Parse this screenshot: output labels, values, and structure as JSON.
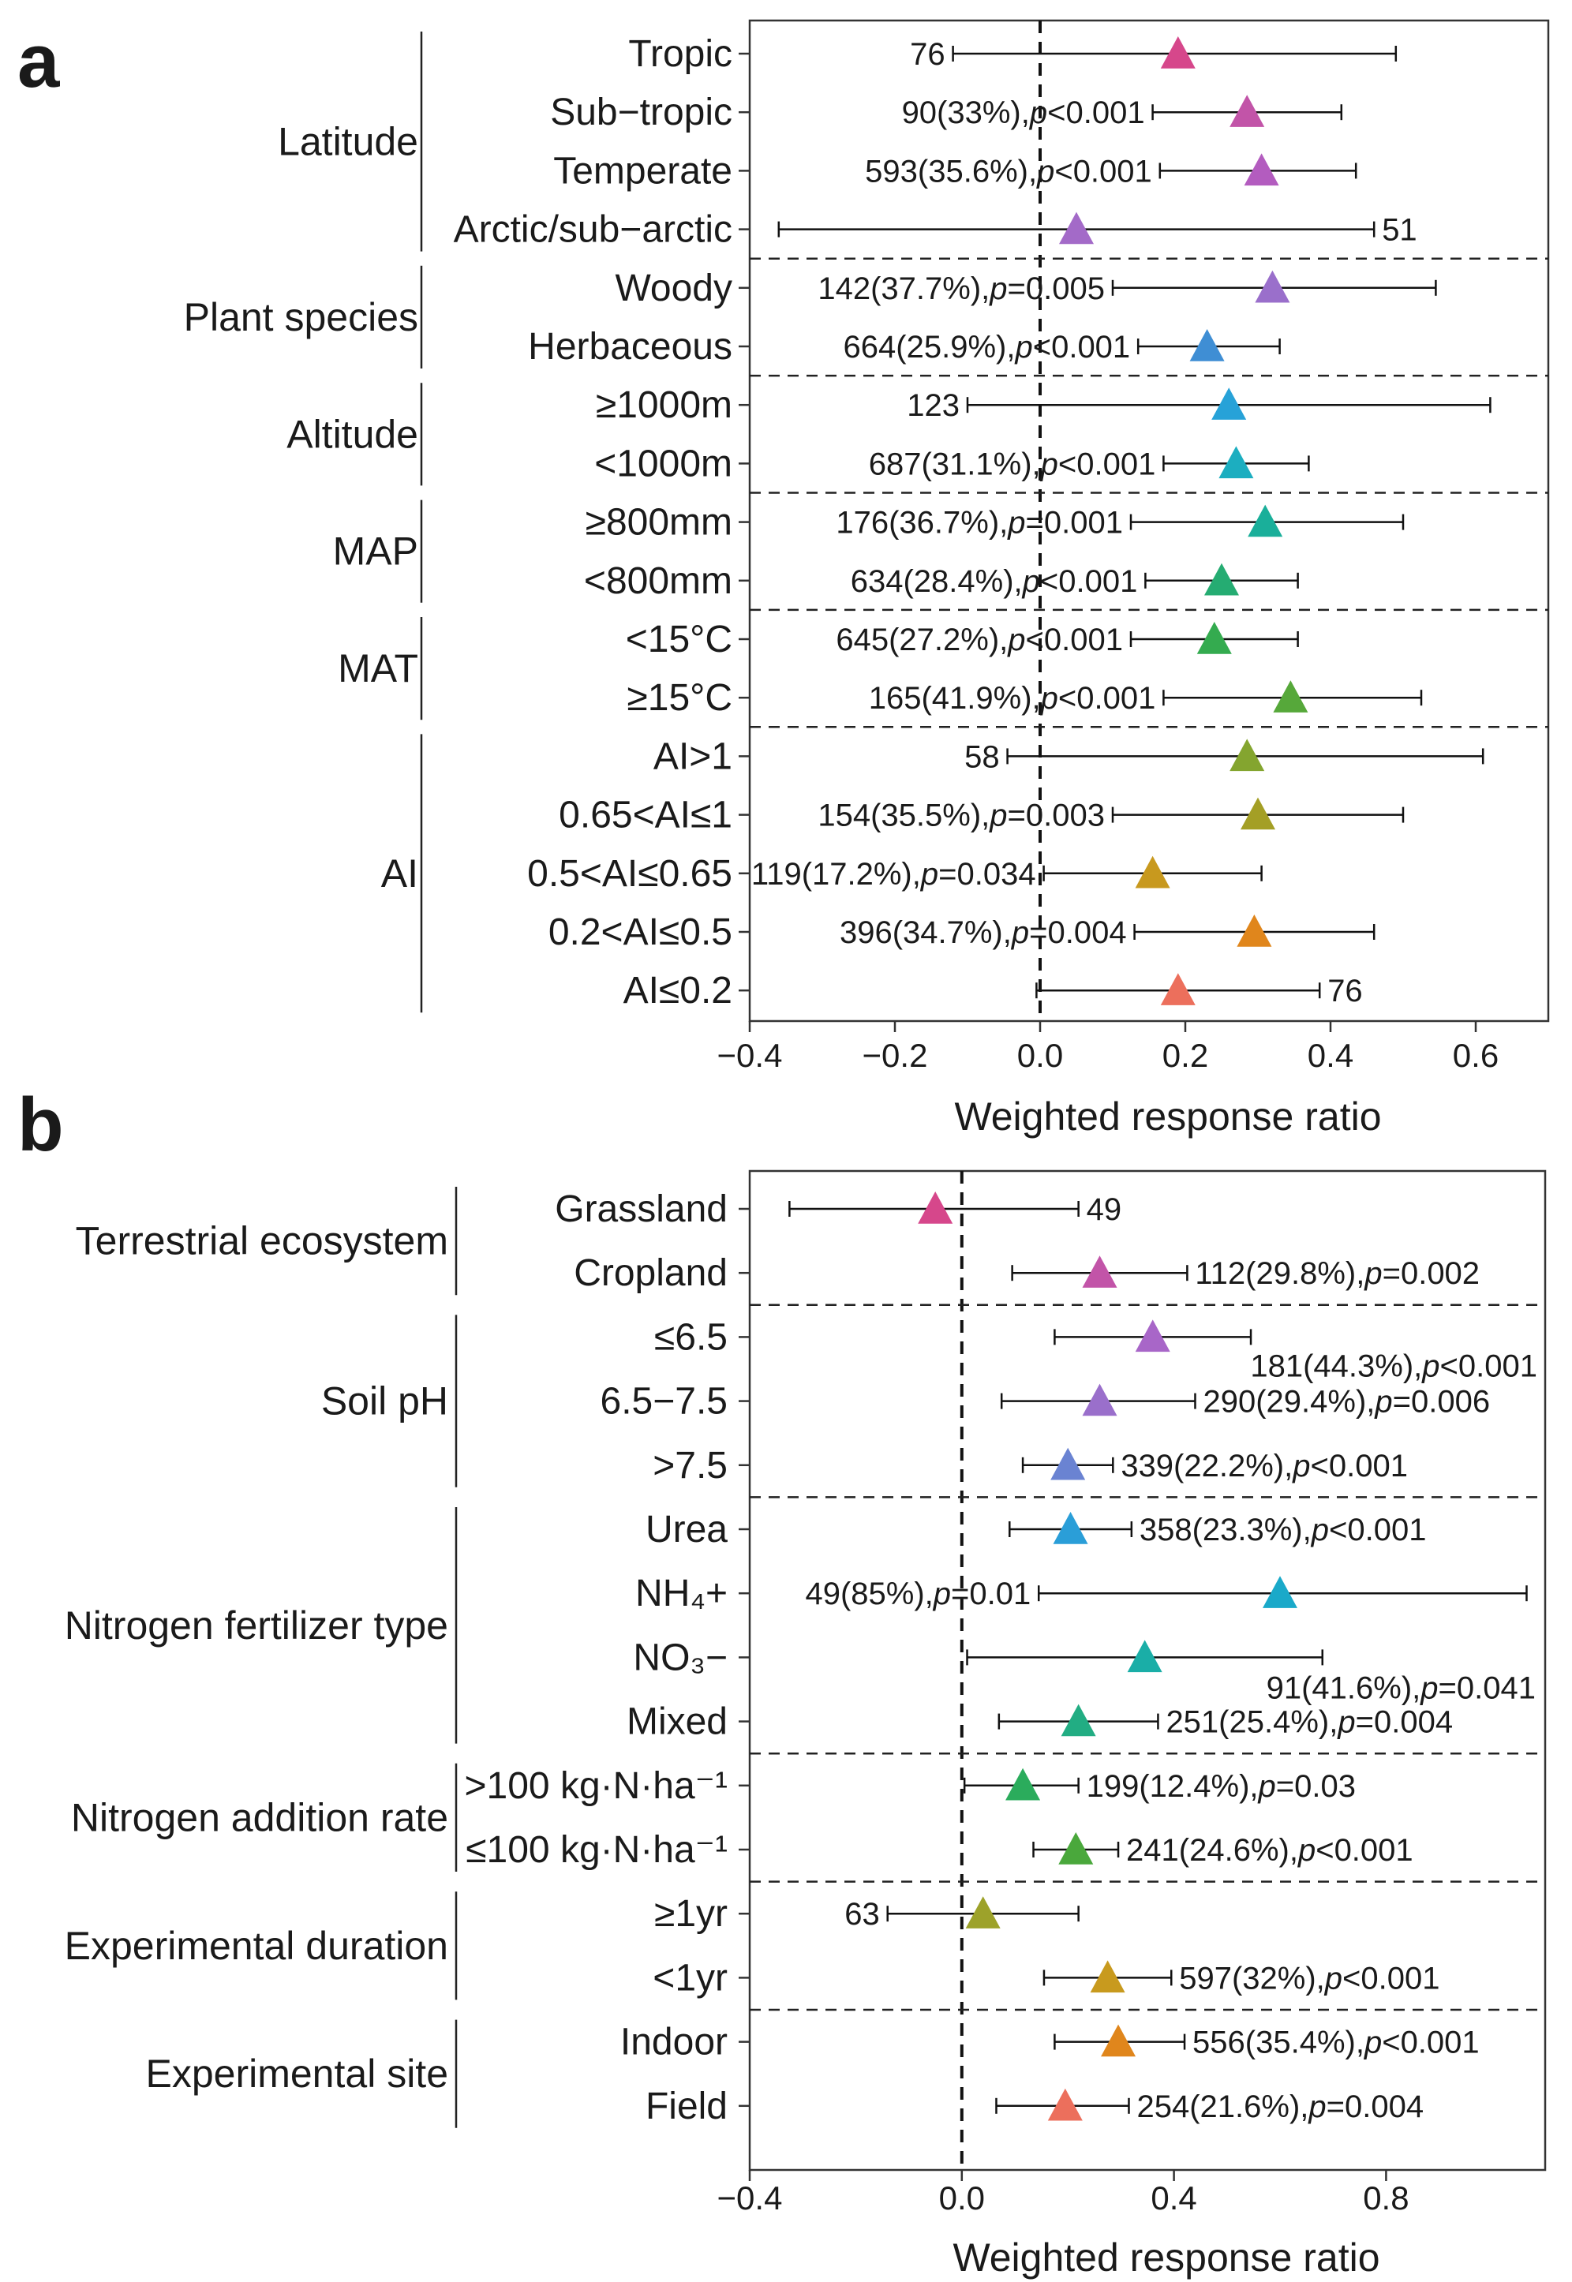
{
  "chart_data": [
    {
      "type": "forest",
      "panel": "a",
      "xlabel": "Weighted response ratio",
      "xlim": [
        -0.4,
        0.7
      ],
      "xticks": [
        -0.4,
        -0.2,
        0.0,
        0.2,
        0.4,
        0.6
      ],
      "xtick_labels": [
        "−0.4",
        "−0.2",
        "0.0",
        "0.2",
        "0.4",
        "0.6"
      ],
      "reference_line": 0,
      "groups": [
        {
          "name": "Latitude",
          "rows": [
            {
              "label": "Tropic",
              "mean": 0.19,
              "lo": -0.12,
              "hi": 0.49,
              "annotation": "76",
              "ann_side": "left",
              "color": "#d6478b"
            },
            {
              "label": "Sub−tropic",
              "mean": 0.285,
              "lo": 0.155,
              "hi": 0.415,
              "annotation": "90(33%),p<0.001",
              "ann_side": "left",
              "color": "#c254a8"
            },
            {
              "label": "Temperate",
              "mean": 0.305,
              "lo": 0.165,
              "hi": 0.435,
              "annotation": "593(35.6%),p<0.001",
              "ann_side": "left",
              "color": "#b35cbf"
            },
            {
              "label": "Arctic/sub−arctic",
              "mean": 0.05,
              "lo": -0.36,
              "hi": 0.46,
              "annotation": "51",
              "ann_side": "right",
              "color": "#a36ac8"
            }
          ]
        },
        {
          "name": "Plant species",
          "rows": [
            {
              "label": "Woody",
              "mean": 0.32,
              "lo": 0.1,
              "hi": 0.545,
              "annotation": "142(37.7%),p=0.005",
              "ann_side": "left",
              "color": "#9a6fcb"
            },
            {
              "label": "Herbaceous",
              "mean": 0.23,
              "lo": 0.135,
              "hi": 0.33,
              "annotation": "664(25.9%),p<0.001",
              "ann_side": "left",
              "color": "#3f8ed4"
            }
          ]
        },
        {
          "name": "Altitude",
          "rows": [
            {
              "label": "≥1000m",
              "mean": 0.26,
              "lo": -0.1,
              "hi": 0.62,
              "annotation": "123",
              "ann_side": "left",
              "color": "#27a2d8"
            },
            {
              "label": "<1000m",
              "mean": 0.27,
              "lo": 0.17,
              "hi": 0.37,
              "annotation": "687(31.1%),p<0.001",
              "ann_side": "left",
              "color": "#1caec0"
            }
          ]
        },
        {
          "name": "MAP",
          "rows": [
            {
              "label": "≥800mm",
              "mean": 0.31,
              "lo": 0.125,
              "hi": 0.5,
              "annotation": "176(36.7%),p=0.001",
              "ann_side": "left",
              "color": "#1aaf9a"
            },
            {
              "label": "<800mm",
              "mean": 0.25,
              "lo": 0.145,
              "hi": 0.355,
              "annotation": "634(28.4%),p<0.001",
              "ann_side": "left",
              "color": "#25ac72"
            }
          ]
        },
        {
          "name": "MAT",
          "rows": [
            {
              "label": "<15°C",
              "mean": 0.24,
              "lo": 0.125,
              "hi": 0.355,
              "annotation": "645(27.2%),p<0.001",
              "ann_side": "left",
              "color": "#34ab4f"
            },
            {
              "label": "≥15°C",
              "mean": 0.345,
              "lo": 0.17,
              "hi": 0.525,
              "annotation": "165(41.9%),p<0.001",
              "ann_side": "left",
              "color": "#56a83a"
            }
          ]
        },
        {
          "name": "AI",
          "rows": [
            {
              "label": "AI>1",
              "mean": 0.285,
              "lo": -0.045,
              "hi": 0.61,
              "annotation": "58",
              "ann_side": "left",
              "color": "#84a52f"
            },
            {
              "label": "0.65<AI≤1",
              "mean": 0.3,
              "lo": 0.1,
              "hi": 0.5,
              "annotation": "154(35.5%),p=0.003",
              "ann_side": "left",
              "color": "#a49f25"
            },
            {
              "label": "0.5<AI≤0.65",
              "mean": 0.155,
              "lo": 0.005,
              "hi": 0.305,
              "annotation": "119(17.2%),p=0.034",
              "ann_side": "left",
              "color": "#c8991e"
            },
            {
              "label": "0.2<AI≤0.5",
              "mean": 0.295,
              "lo": 0.13,
              "hi": 0.46,
              "annotation": "396(34.7%),p=0.004",
              "ann_side": "left",
              "color": "#e0861c"
            },
            {
              "label": "AI≤0.2",
              "mean": 0.19,
              "lo": -0.005,
              "hi": 0.385,
              "annotation": "76",
              "ann_side": "right",
              "color": "#ec6f5c"
            }
          ]
        }
      ]
    },
    {
      "type": "forest",
      "panel": "b",
      "xlabel": "Weighted response ratio",
      "xlim": [
        -0.4,
        1.1
      ],
      "xticks": [
        -0.4,
        0.0,
        0.4,
        0.8
      ],
      "xtick_labels": [
        "−0.4",
        "0.0",
        "0.4",
        "0.8"
      ],
      "reference_line": 0,
      "groups": [
        {
          "name": "Terrestrial ecosystem",
          "rows": [
            {
              "label": "Grassland",
              "mean": -0.05,
              "lo": -0.325,
              "hi": 0.22,
              "annotation": "49",
              "ann_side": "right",
              "color": "#d6478b"
            },
            {
              "label": "Cropland",
              "mean": 0.26,
              "lo": 0.095,
              "hi": 0.425,
              "annotation": "112(29.8%),p=0.002",
              "ann_side": "right",
              "color": "#c254a8"
            }
          ]
        },
        {
          "name": "Soil pH",
          "rows": [
            {
              "label": "≤6.5",
              "mean": 0.36,
              "lo": 0.175,
              "hi": 0.545,
              "annotation": "181(44.3%),p<0.001",
              "ann_side": "below",
              "color": "#a866c8"
            },
            {
              "label": "6.5−7.5",
              "mean": 0.26,
              "lo": 0.075,
              "hi": 0.44,
              "annotation": "290(29.4%),p=0.006",
              "ann_side": "right",
              "color": "#9a6fcb"
            },
            {
              "label": ">7.5",
              "mean": 0.2,
              "lo": 0.115,
              "hi": 0.285,
              "annotation": "339(22.2%),p<0.001",
              "ann_side": "right",
              "color": "#6a83d2"
            }
          ]
        },
        {
          "name": "Nitrogen fertilizer type",
          "rows": [
            {
              "label": "Urea",
              "mean": 0.205,
              "lo": 0.09,
              "hi": 0.32,
              "annotation": "358(23.3%),p<0.001",
              "ann_side": "right",
              "color": "#2a9ed8"
            },
            {
              "label": "NH₄+",
              "mean": 0.6,
              "lo": 0.145,
              "hi": 1.065,
              "annotation": "49(85%),p=0.01",
              "ann_side": "left",
              "color": "#1aa9c9"
            },
            {
              "label": "NO₃−",
              "mean": 0.345,
              "lo": 0.01,
              "hi": 0.68,
              "annotation": "91(41.6%),p=0.041",
              "ann_side": "above-right",
              "color": "#1aaea7"
            },
            {
              "label": "Mixed",
              "mean": 0.22,
              "lo": 0.07,
              "hi": 0.37,
              "annotation": "251(25.4%),p=0.004",
              "ann_side": "right",
              "color": "#22ad83"
            }
          ]
        },
        {
          "name": "Nitrogen addition rate",
          "rows": [
            {
              "label": ">100 kg·N·ha⁻¹",
              "mean": 0.115,
              "lo": 0.005,
              "hi": 0.22,
              "annotation": "199(12.4%),p=0.03",
              "ann_side": "right",
              "color": "#2bac5c"
            },
            {
              "label": "≤100 kg·N·ha⁻¹",
              "mean": 0.215,
              "lo": 0.135,
              "hi": 0.295,
              "annotation": "241(24.6%),p<0.001",
              "ann_side": "right",
              "color": "#4aa83c"
            }
          ]
        },
        {
          "name": "Experimental duration",
          "rows": [
            {
              "label": "≥1yr",
              "mean": 0.04,
              "lo": -0.14,
              "hi": 0.22,
              "annotation": "63",
              "ann_side": "left",
              "color": "#9da22a"
            },
            {
              "label": "<1yr",
              "mean": 0.275,
              "lo": 0.155,
              "hi": 0.395,
              "annotation": "597(32%),p<0.001",
              "ann_side": "right",
              "color": "#c89a1e"
            }
          ]
        },
        {
          "name": "Experimental site",
          "rows": [
            {
              "label": "Indoor",
              "mean": 0.295,
              "lo": 0.175,
              "hi": 0.42,
              "annotation": "556(35.4%),p<0.001",
              "ann_side": "right",
              "color": "#e0861c"
            },
            {
              "label": "Field",
              "mean": 0.195,
              "lo": 0.065,
              "hi": 0.315,
              "annotation": "254(21.6%),p=0.004",
              "ann_side": "right",
              "color": "#ec6f5c"
            }
          ]
        }
      ]
    }
  ]
}
